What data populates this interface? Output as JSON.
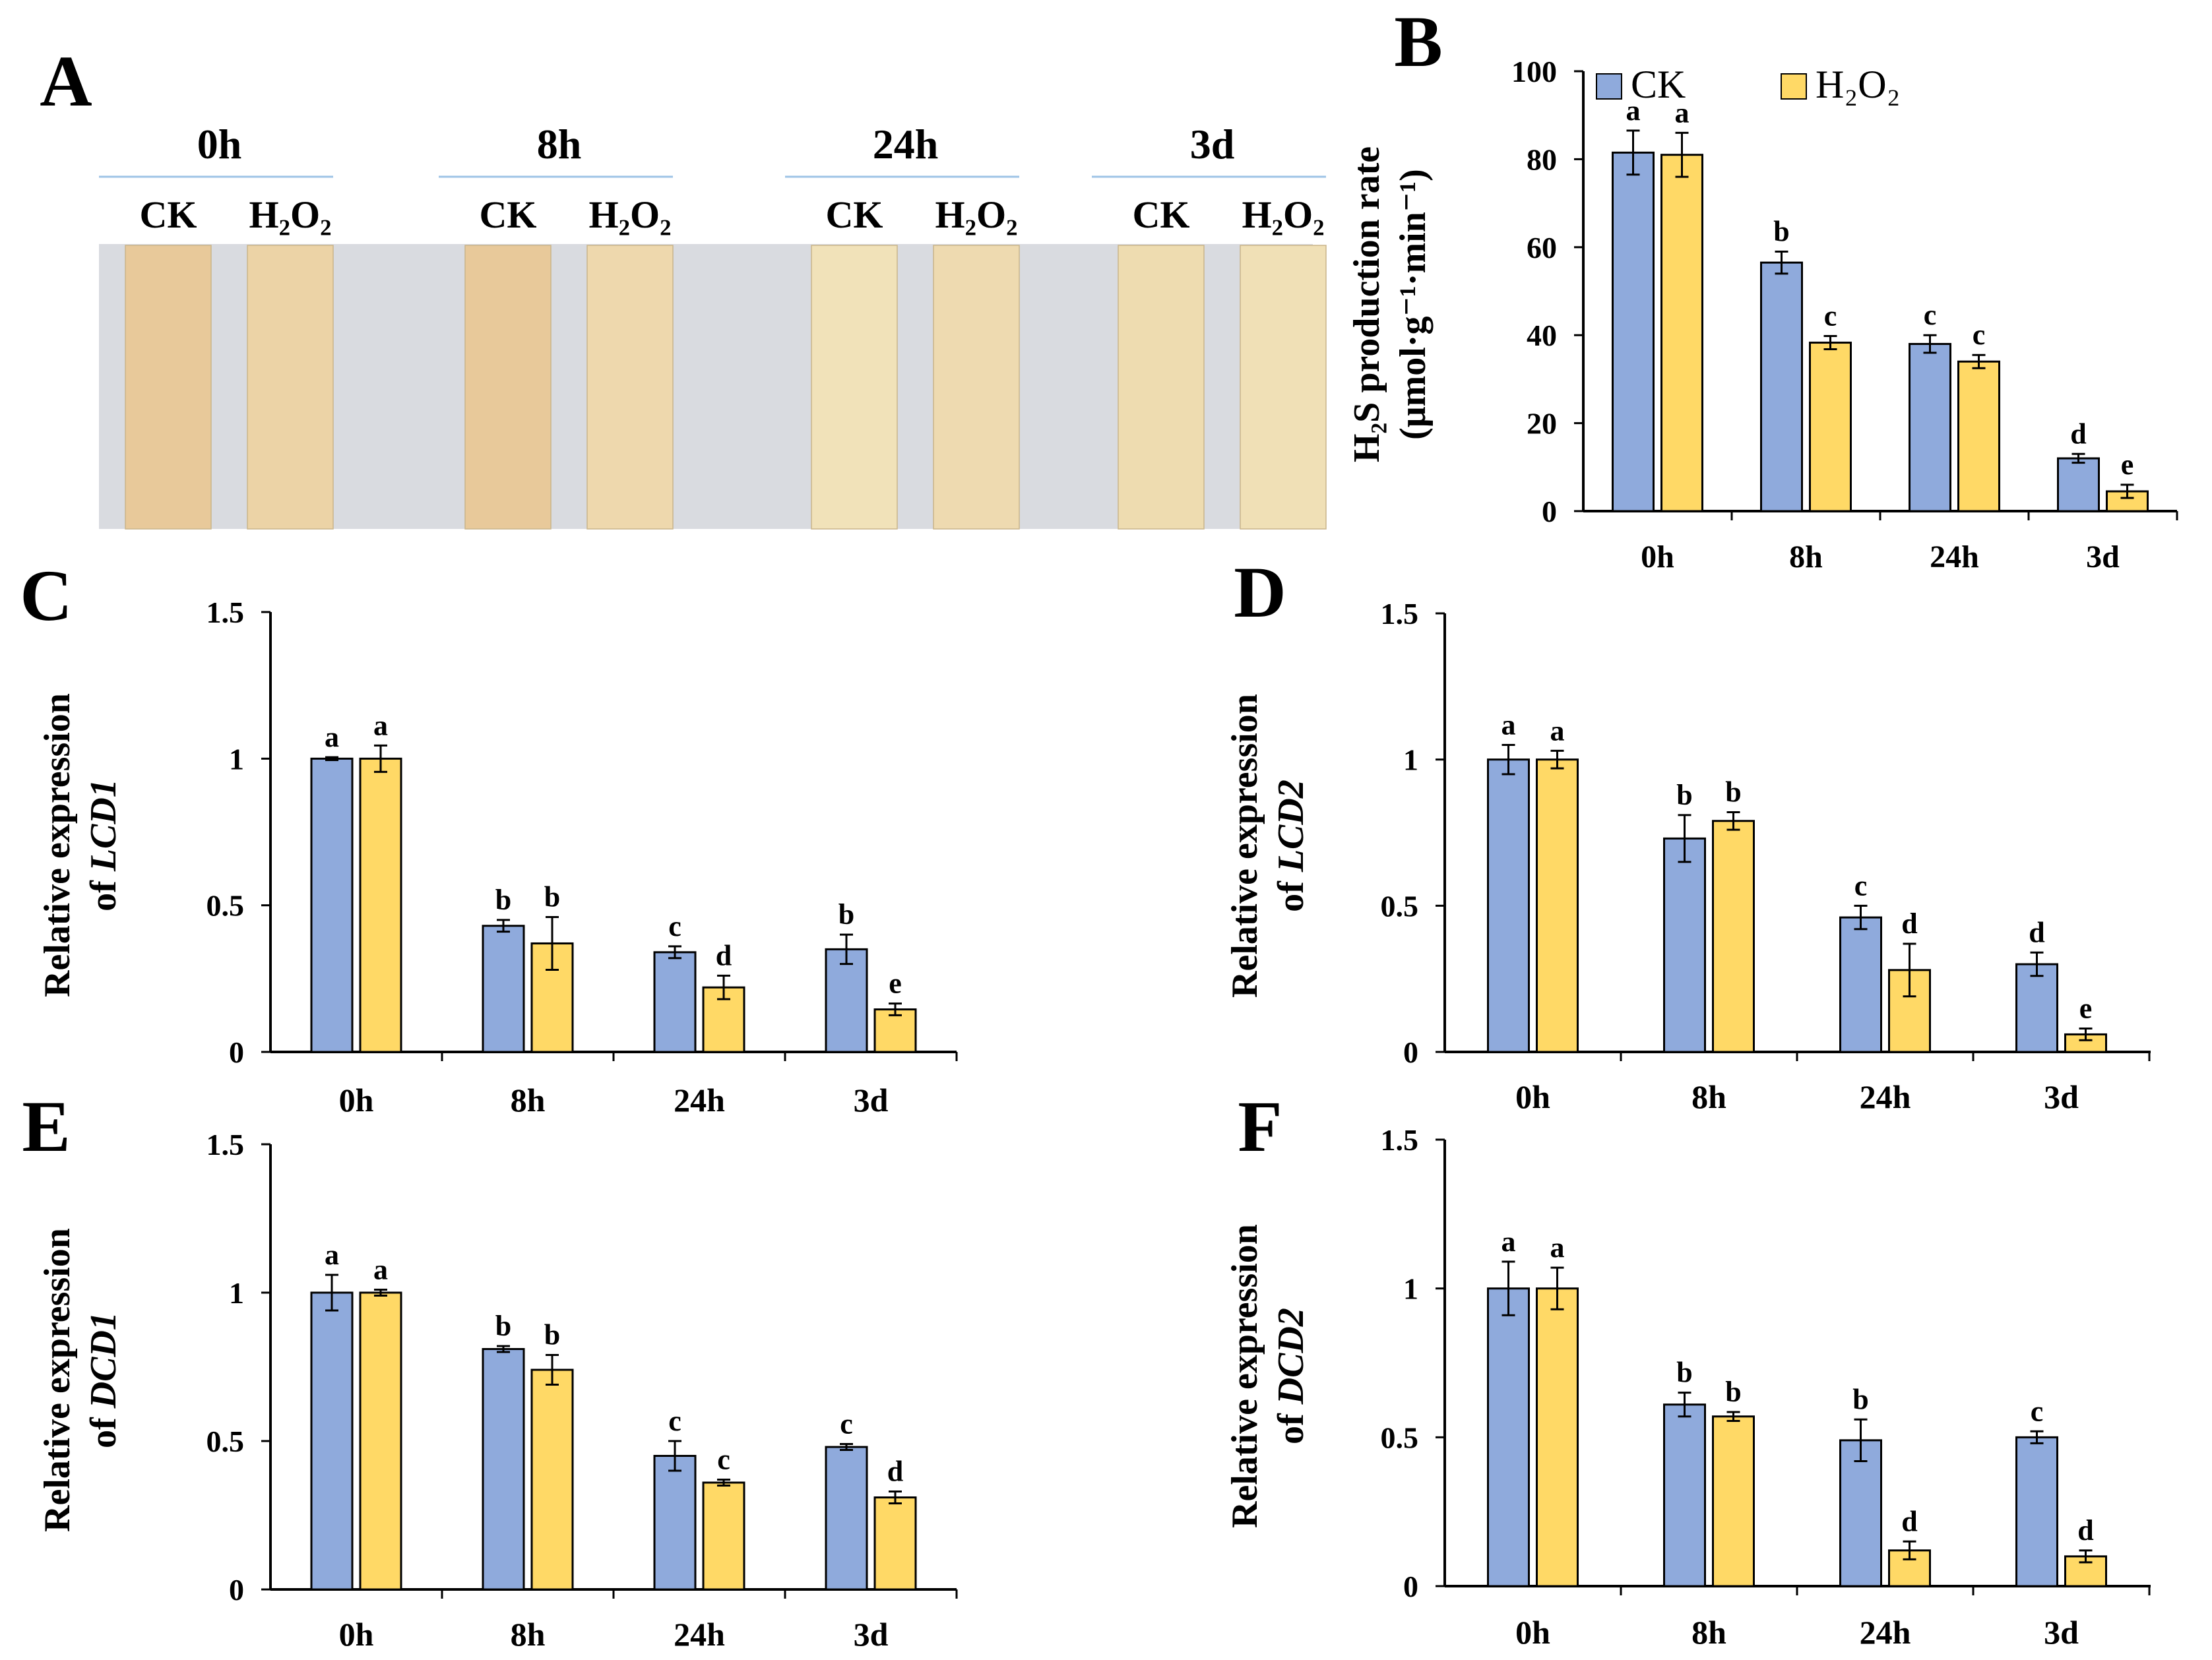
{
  "colors": {
    "ck": "#8faadc",
    "h2o2": "#ffd966",
    "axis": "#000000",
    "error": "#000000",
    "header_line": "#9dc3e6"
  },
  "panel_a": {
    "label": "A",
    "groups": [
      {
        "time": "0h",
        "treatments": [
          "CK",
          "H₂O₂"
        ],
        "strip_colors": [
          "#e8c99a",
          "#ecd3a6"
        ]
      },
      {
        "time": "8h",
        "treatments": [
          "CK",
          "H₂O₂"
        ],
        "strip_colors": [
          "#e8c99a",
          "#eed8ad"
        ]
      },
      {
        "time": "24h",
        "treatments": [
          "CK",
          "H₂O₂"
        ],
        "strip_colors": [
          "#f1e2b9",
          "#eedab0"
        ]
      },
      {
        "time": "3d",
        "treatments": [
          "CK",
          "H₂O₂"
        ],
        "strip_colors": [
          "#eedcb0",
          "#f0e0b6"
        ]
      }
    ]
  },
  "chart_data": [
    {
      "id": "B",
      "type": "bar",
      "panel_label": "B",
      "categories": [
        "0h",
        "8h",
        "24h",
        "3d"
      ],
      "ylabel_line1": "H₂S production rate",
      "ylabel_line2": "(μmol·g⁻¹·min⁻¹)",
      "ylim": [
        0,
        100
      ],
      "yticks": [
        0,
        20,
        40,
        60,
        80,
        100
      ],
      "ytick_labels": [
        "0",
        "20",
        "40",
        "60",
        "80",
        "100"
      ],
      "legend": [
        "CK",
        "H₂O₂"
      ],
      "series": [
        {
          "name": "CK",
          "values": [
            81.5,
            56.5,
            38,
            12
          ],
          "errors": [
            5,
            2.5,
            2,
            1
          ],
          "letters": [
            "a",
            "b",
            "c",
            "d"
          ]
        },
        {
          "name": "H₂O₂",
          "values": [
            81,
            38.3,
            34,
            4.5
          ],
          "errors": [
            5,
            1.5,
            1.5,
            1.5
          ],
          "letters": [
            "a",
            "c",
            "c",
            "e"
          ]
        }
      ]
    },
    {
      "id": "C",
      "type": "bar",
      "panel_label": "C",
      "categories": [
        "0h",
        "8h",
        "24h",
        "3d"
      ],
      "ylabel_line1": "Relative expression",
      "ylabel_line2_prefix": "of ",
      "ylabel_gene": "LCD1",
      "ylim": [
        0,
        1.5
      ],
      "yticks": [
        0,
        0.5,
        1,
        1.5
      ],
      "ytick_labels": [
        "0",
        "0.5",
        "1",
        "1.5"
      ],
      "series": [
        {
          "name": "CK",
          "values": [
            1.0,
            0.43,
            0.34,
            0.35
          ],
          "errors": [
            0.005,
            0.02,
            0.02,
            0.05
          ],
          "letters": [
            "a",
            "b",
            "c",
            "b"
          ]
        },
        {
          "name": "H₂O₂",
          "values": [
            1.0,
            0.37,
            0.22,
            0.145
          ],
          "errors": [
            0.045,
            0.09,
            0.04,
            0.02
          ],
          "letters": [
            "a",
            "b",
            "d",
            "e"
          ]
        }
      ]
    },
    {
      "id": "D",
      "type": "bar",
      "panel_label": "D",
      "categories": [
        "0h",
        "8h",
        "24h",
        "3d"
      ],
      "ylabel_line1": "Relative expression",
      "ylabel_line2_prefix": "of ",
      "ylabel_gene": "LCD2",
      "ylim": [
        0,
        1.5
      ],
      "yticks": [
        0,
        0.5,
        1,
        1.5
      ],
      "ytick_labels": [
        "0",
        "0.5",
        "1",
        "1.5"
      ],
      "series": [
        {
          "name": "CK",
          "values": [
            1.0,
            0.73,
            0.46,
            0.3
          ],
          "errors": [
            0.05,
            0.08,
            0.04,
            0.04
          ],
          "letters": [
            "a",
            "b",
            "c",
            "d"
          ]
        },
        {
          "name": "H₂O₂",
          "values": [
            1.0,
            0.79,
            0.28,
            0.06
          ],
          "errors": [
            0.03,
            0.03,
            0.09,
            0.02
          ],
          "letters": [
            "a",
            "b",
            "d",
            "e"
          ]
        }
      ]
    },
    {
      "id": "E",
      "type": "bar",
      "panel_label": "E",
      "categories": [
        "0h",
        "8h",
        "24h",
        "3d"
      ],
      "ylabel_line1": "Relative expression",
      "ylabel_line2_prefix": "of ",
      "ylabel_gene": "DCD1",
      "ylim": [
        0,
        1.5
      ],
      "yticks": [
        0,
        0.5,
        1,
        1.5
      ],
      "ytick_labels": [
        "0",
        "0.5",
        "1",
        "1.5"
      ],
      "series": [
        {
          "name": "CK",
          "values": [
            1.0,
            0.81,
            0.45,
            0.48
          ],
          "errors": [
            0.06,
            0.01,
            0.05,
            0.01
          ],
          "letters": [
            "a",
            "b",
            "c",
            "c"
          ]
        },
        {
          "name": "H₂O₂",
          "values": [
            1.0,
            0.74,
            0.36,
            0.31
          ],
          "errors": [
            0.01,
            0.05,
            0.01,
            0.02
          ],
          "letters": [
            "a",
            "b",
            "c",
            "d"
          ]
        }
      ]
    },
    {
      "id": "F",
      "type": "bar",
      "panel_label": "F",
      "categories": [
        "0h",
        "8h",
        "24h",
        "3d"
      ],
      "ylabel_line1": "Relative expression",
      "ylabel_line2_prefix": "of ",
      "ylabel_gene": "DCD2",
      "ylim": [
        0,
        1.5
      ],
      "yticks": [
        0,
        0.5,
        1,
        1.5
      ],
      "ytick_labels": [
        "0",
        "0.5",
        "1",
        "1.5"
      ],
      "series": [
        {
          "name": "CK",
          "values": [
            1.0,
            0.61,
            0.49,
            0.5
          ],
          "errors": [
            0.09,
            0.04,
            0.07,
            0.02
          ],
          "letters": [
            "a",
            "b",
            "b",
            "c"
          ]
        },
        {
          "name": "H₂O₂",
          "values": [
            1.0,
            0.57,
            0.12,
            0.1
          ],
          "errors": [
            0.07,
            0.015,
            0.03,
            0.02
          ],
          "letters": [
            "a",
            "b",
            "d",
            "d"
          ]
        }
      ]
    }
  ]
}
